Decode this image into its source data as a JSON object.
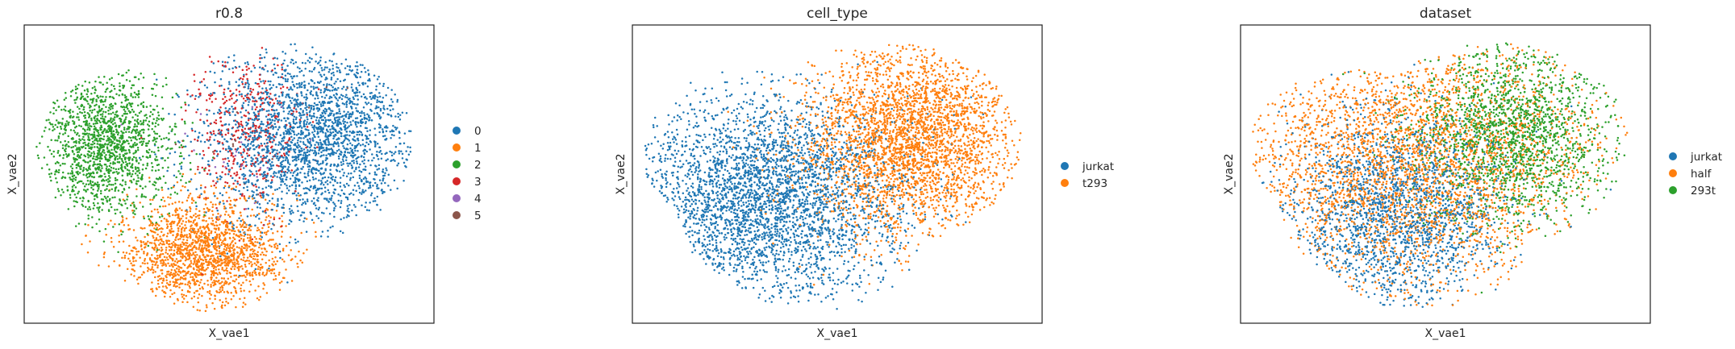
{
  "chart_data": [
    {
      "type": "scatter",
      "title": "r0.8",
      "xlabel": "X_vae1",
      "ylabel": "X_vae2",
      "grid": false,
      "legend_placement": "right",
      "legend": [
        {
          "label": "0",
          "color": "#1f77b4"
        },
        {
          "label": "1",
          "color": "#ff7f0e"
        },
        {
          "label": "2",
          "color": "#2ca02c"
        },
        {
          "label": "3",
          "color": "#d62728"
        },
        {
          "label": "4",
          "color": "#9467bd"
        },
        {
          "label": "5",
          "color": "#8c564b"
        }
      ]
    },
    {
      "type": "scatter",
      "title": "cell_type",
      "xlabel": "X_vae1",
      "ylabel": "X_vae2",
      "grid": false,
      "legend_placement": "right",
      "legend": [
        {
          "label": "jurkat",
          "color": "#1f77b4"
        },
        {
          "label": "t293",
          "color": "#ff7f0e"
        }
      ]
    },
    {
      "type": "scatter",
      "title": "dataset",
      "xlabel": "X_vae1",
      "ylabel": "X_vae2",
      "grid": false,
      "legend_placement": "right",
      "legend": [
        {
          "label": "jurkat",
          "color": "#1f77b4"
        },
        {
          "label": "half",
          "color": "#ff7f0e"
        },
        {
          "label": "293t",
          "color": "#2ca02c"
        }
      ]
    }
  ]
}
